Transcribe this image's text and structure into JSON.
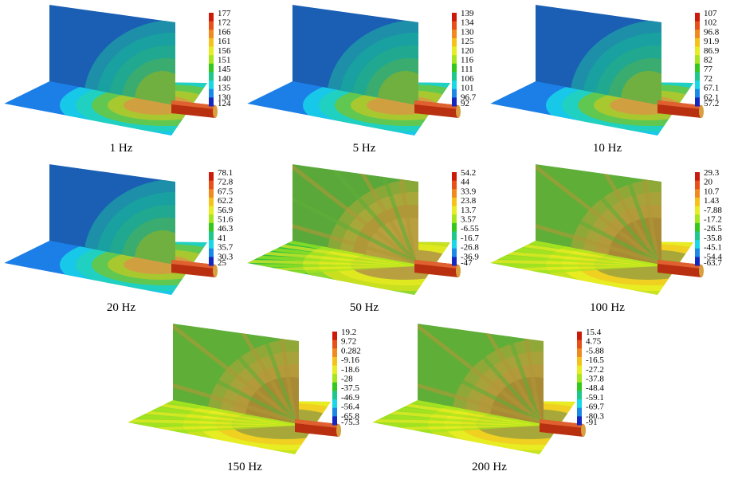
{
  "panels": [
    {
      "caption": "1 Hz",
      "ticks": [
        "177",
        "172",
        "166",
        "161",
        "156",
        "151",
        "145",
        "140",
        "135",
        "130",
        "124"
      ],
      "style": "low"
    },
    {
      "caption": "5 Hz",
      "ticks": [
        "139",
        "134",
        "130",
        "125",
        "120",
        "116",
        "111",
        "106",
        "101",
        "96.7",
        "92"
      ],
      "style": "low"
    },
    {
      "caption": "10 Hz",
      "ticks": [
        "107",
        "102",
        "96.8",
        "91.9",
        "86.9",
        "82",
        "77",
        "72",
        "67.1",
        "62.1",
        "57.2"
      ],
      "style": "low"
    },
    {
      "caption": "20 Hz",
      "ticks": [
        "78.1",
        "72.8",
        "67.5",
        "62.2",
        "56.9",
        "51.6",
        "46.3",
        "41",
        "35.7",
        "30.3",
        "25"
      ],
      "style": "low"
    },
    {
      "caption": "50 Hz",
      "ticks": [
        "54.2",
        "44",
        "33.9",
        "23.8",
        "13.7",
        "3.57",
        "-6.55",
        "-16.7",
        "-26.8",
        "-36.9",
        "-47"
      ],
      "style": "mid"
    },
    {
      "caption": "100 Hz",
      "ticks": [
        "29.3",
        "20",
        "10.7",
        "1.43",
        "-7.88",
        "-17.2",
        "-26.5",
        "-35.8",
        "-45.1",
        "-54.4",
        "-63.7"
      ],
      "style": "high"
    },
    {
      "caption": "150 Hz",
      "ticks": [
        "19.2",
        "9.72",
        "0.282",
        "-9.16",
        "-18.6",
        "-28",
        "-37.5",
        "-46.9",
        "-56.4",
        "-65.8",
        "-75.3"
      ],
      "style": "high"
    },
    {
      "caption": "200 Hz",
      "ticks": [
        "15.4",
        "4.75",
        "-5.88",
        "-16.5",
        "-27.2",
        "-37.8",
        "-48.4",
        "-59.1",
        "-69.7",
        "-80.3",
        "-91"
      ],
      "style": "high"
    }
  ],
  "colorbar_colors": [
    "#cc1a0a",
    "#e8501a",
    "#f08a1e",
    "#f5c21c",
    "#e8ec22",
    "#a6e61e",
    "#34c81e",
    "#1ec88c",
    "#18d8e6",
    "#1a8ae6",
    "#1428c0"
  ]
}
